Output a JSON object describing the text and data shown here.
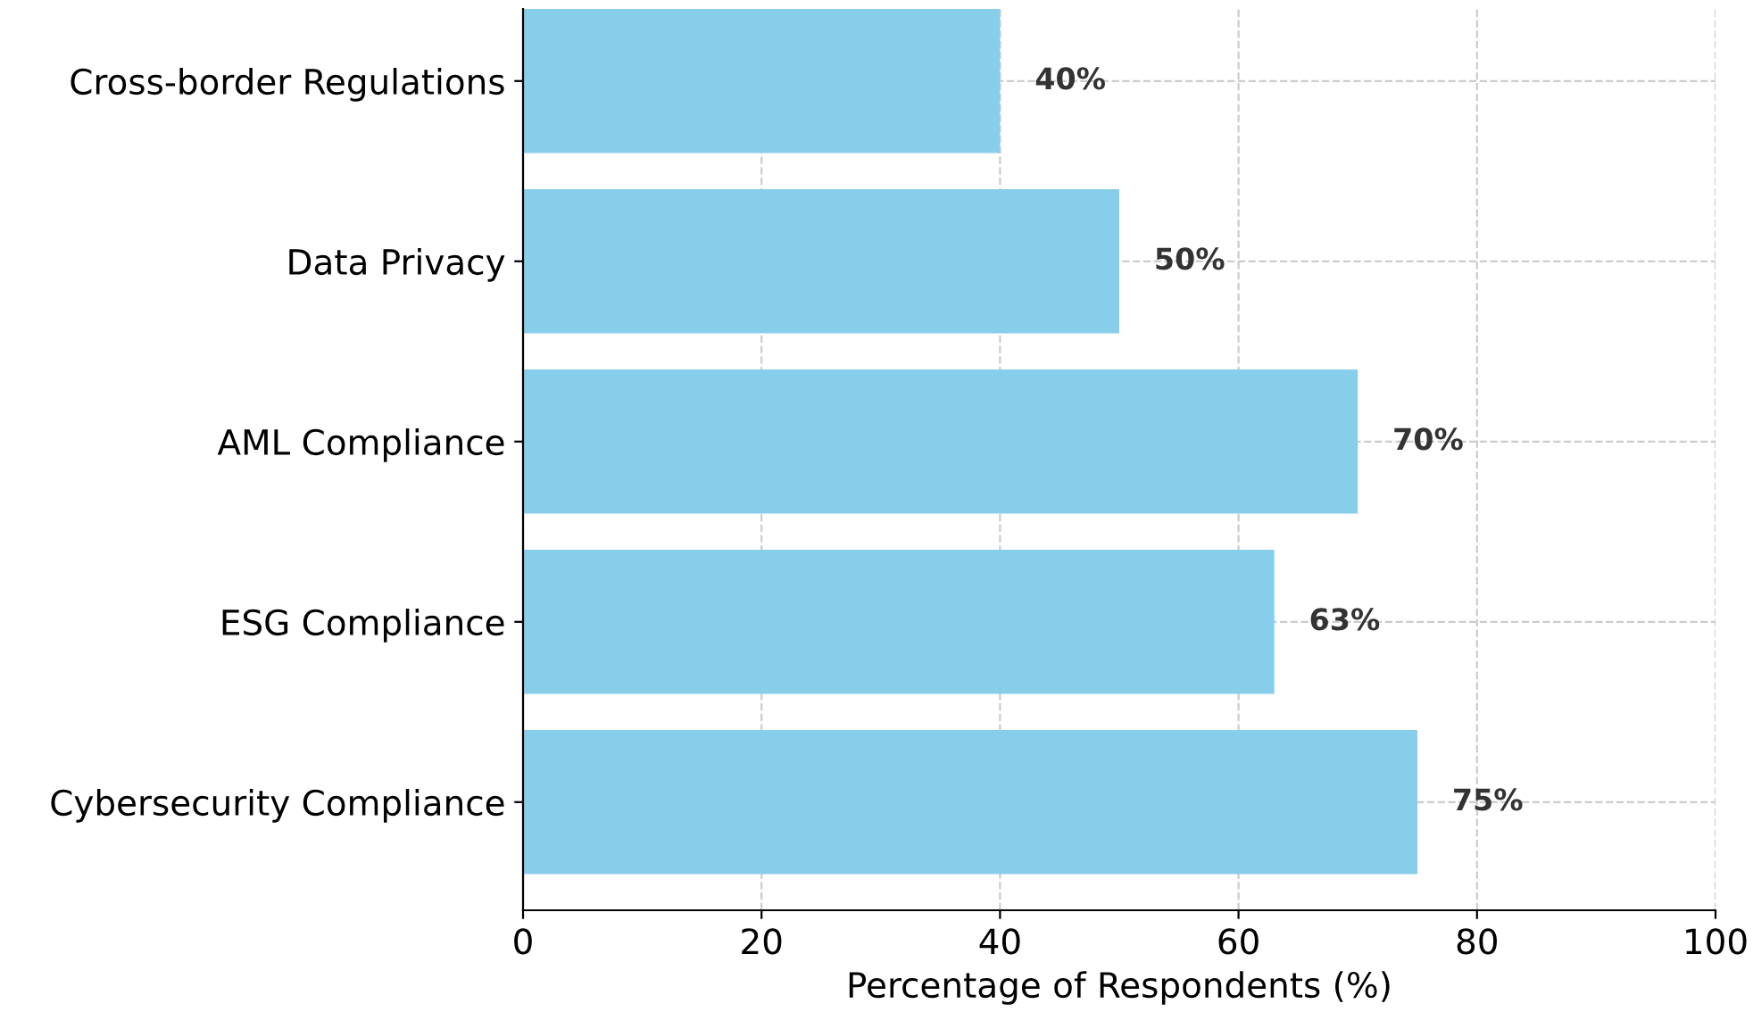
{
  "chart_data": {
    "type": "bar",
    "orientation": "horizontal",
    "xlabel": "Percentage of Respondents (%)",
    "categories": [
      "Cross-border Regulations",
      "Data Privacy",
      "AML Compliance",
      "ESG Compliance",
      "Cybersecurity Compliance"
    ],
    "values": [
      40,
      50,
      70,
      63,
      75
    ],
    "color": "#87ceeb",
    "value_labels": [
      "40%",
      "50%",
      "70%",
      "63%",
      "75%"
    ],
    "xlim": [
      0,
      100
    ],
    "xticks": [
      0,
      20,
      40,
      60,
      80,
      100
    ],
    "grid": true
  }
}
